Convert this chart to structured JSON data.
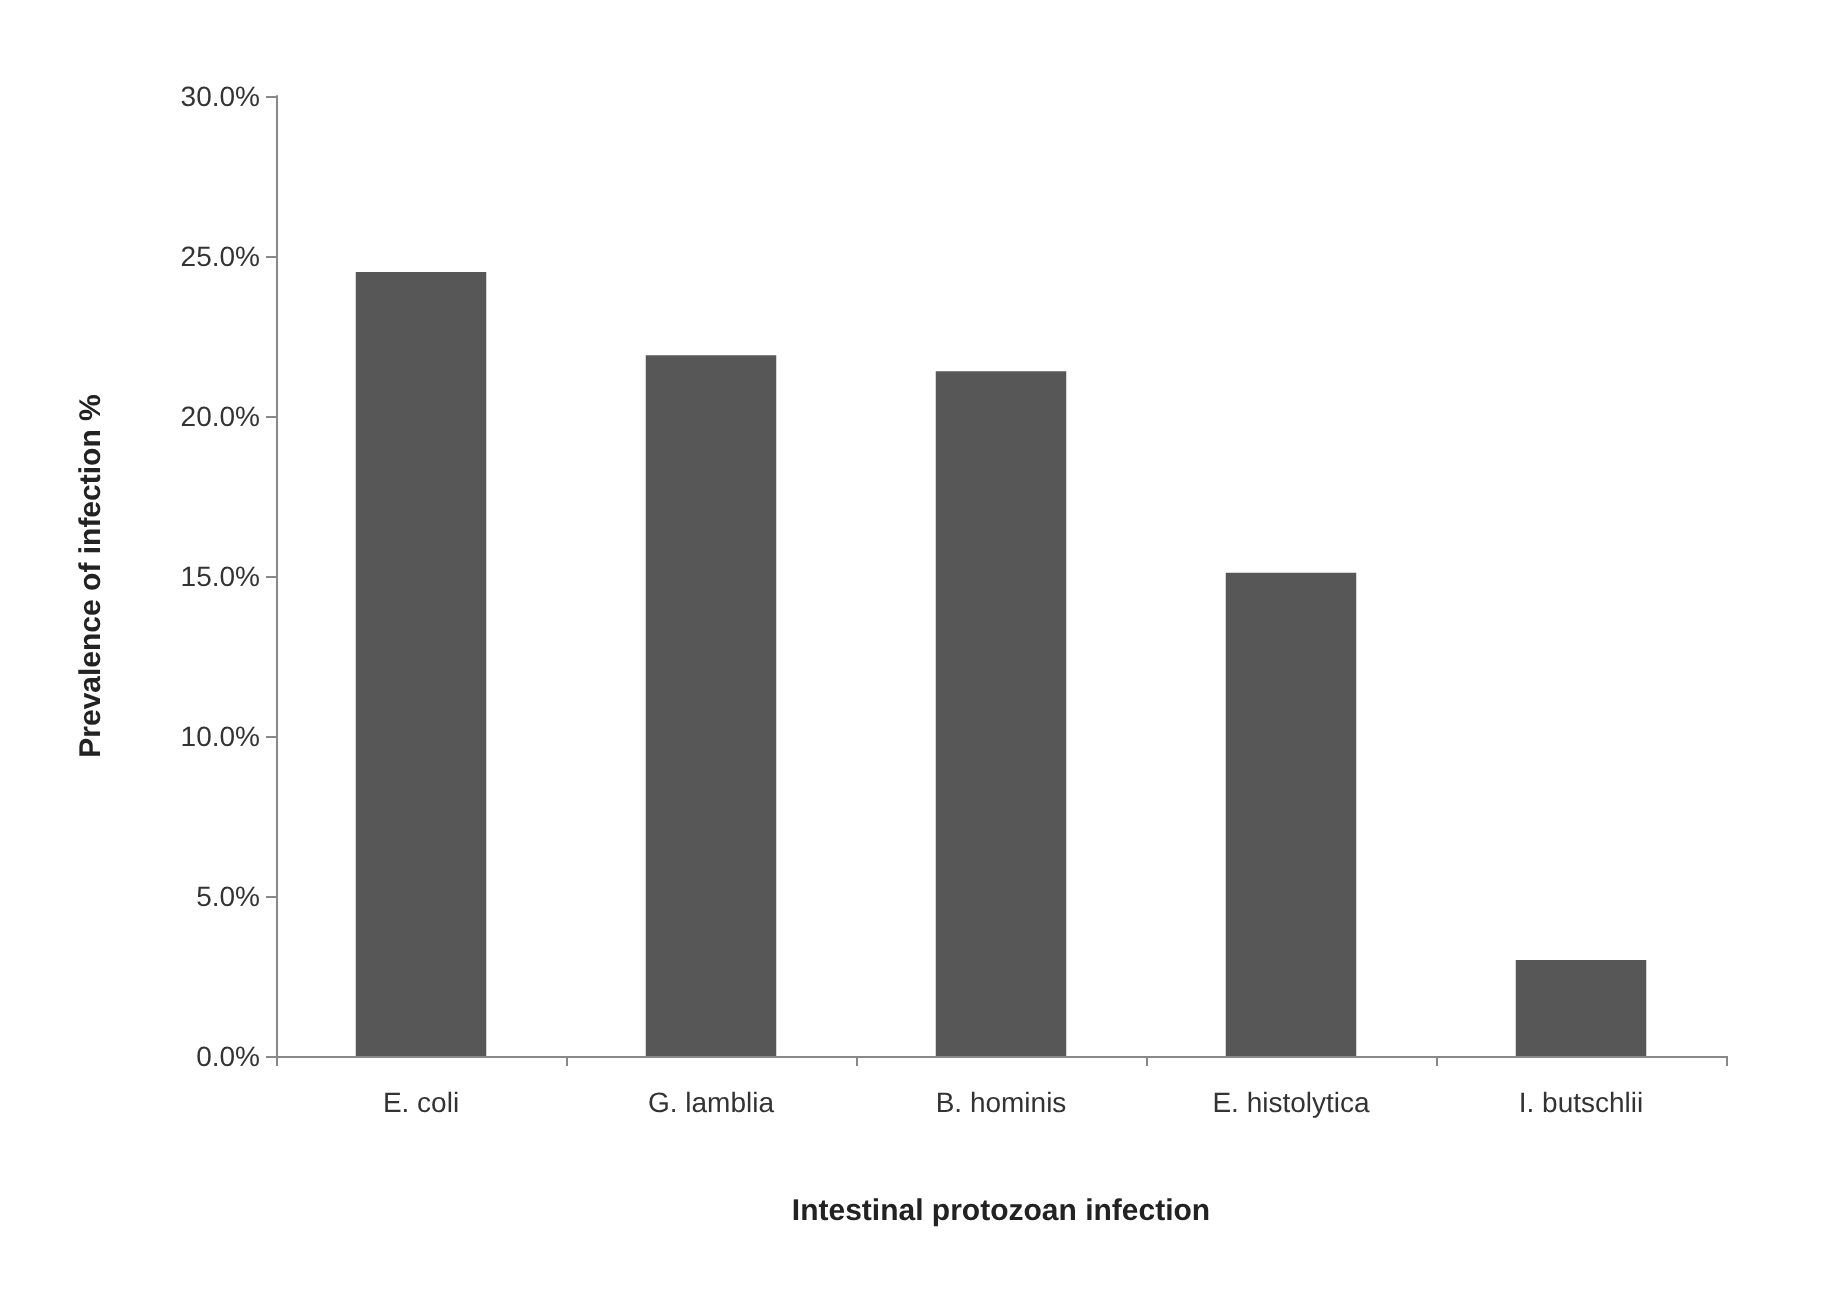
{
  "chart_data": {
    "type": "bar",
    "xlabel": "Intestinal protozoan infection",
    "ylabel": "Prevalence of infection %",
    "categories": [
      "E. coli",
      "G. lamblia",
      "B. hominis",
      "E. histolytica",
      "I. butschlii"
    ],
    "values": [
      24.5,
      21.9,
      21.4,
      15.1,
      3.0
    ],
    "color": "#575757",
    "ylim": [
      0,
      30
    ],
    "yticks": [
      {
        "value": 0,
        "label": "0.0%"
      },
      {
        "value": 5,
        "label": "5.0%"
      },
      {
        "value": 10,
        "label": "10.0%"
      },
      {
        "value": 15,
        "label": "15.0%"
      },
      {
        "value": 20,
        "label": "20.0%"
      },
      {
        "value": 25,
        "label": "25.0%"
      },
      {
        "value": 30,
        "label": "30.0%"
      }
    ],
    "grid": false
  }
}
